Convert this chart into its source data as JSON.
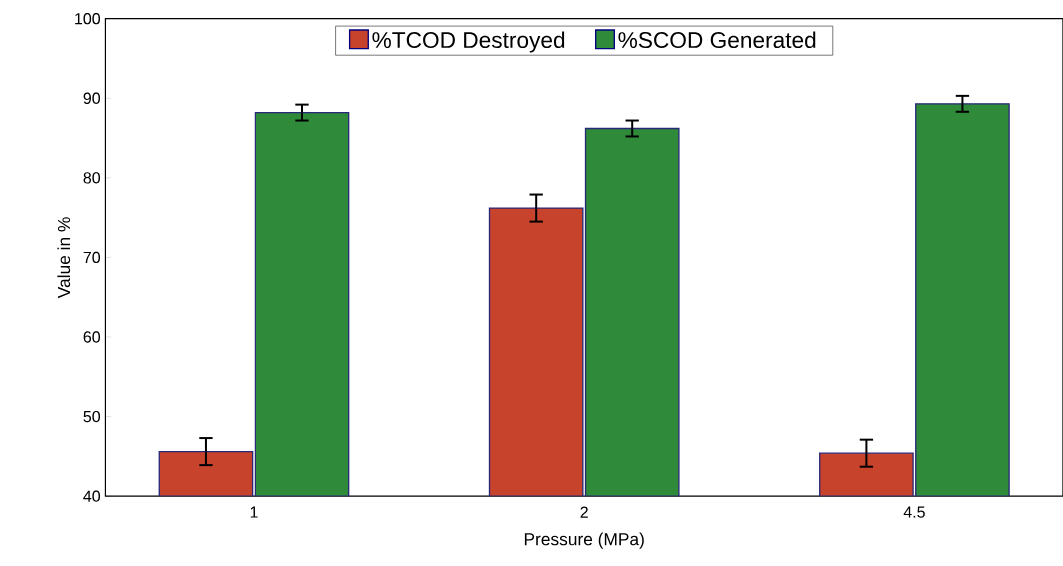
{
  "chart_data": {
    "type": "bar",
    "xlabel": "Pressure (MPa)",
    "ylabel": "Value in %",
    "categories": [
      "1",
      "2",
      "4.5"
    ],
    "series": [
      {
        "name": "%TCOD Destroyed",
        "color": "#c8432b",
        "values": [
          45.6,
          76.2,
          45.4
        ],
        "errors": [
          1.7,
          1.7,
          1.7
        ]
      },
      {
        "name": "%SCOD Generated",
        "color": "#2f8a3a",
        "values": [
          88.2,
          86.2,
          89.3
        ],
        "errors": [
          1.0,
          1.0,
          1.0
        ]
      }
    ],
    "ylim": [
      40,
      100
    ],
    "yticks": [
      40,
      50,
      60,
      70,
      80,
      90,
      100
    ],
    "legend": "top",
    "grid": false
  }
}
